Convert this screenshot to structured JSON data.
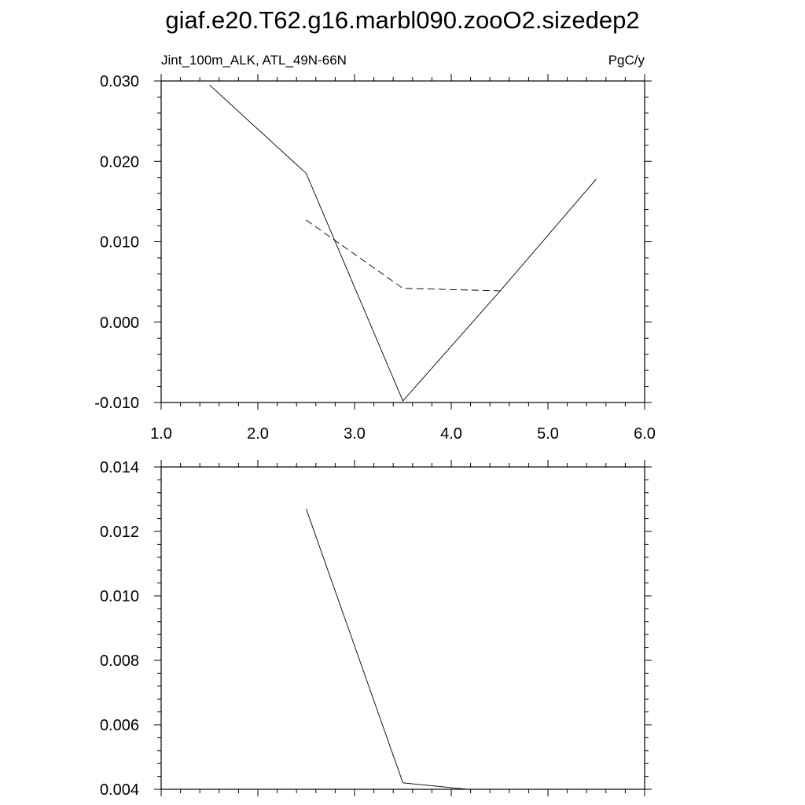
{
  "figure": {
    "title": "giaf.e20.T62.g16.marbl090.zooO2.sizedep2"
  },
  "chart_data": [
    {
      "type": "line",
      "subtitle_left": "Jint_100m_ALK, ATL_49N-66N",
      "subtitle_right": "PgC/y",
      "xlim": [
        1.0,
        6.0
      ],
      "ylim": [
        -0.01,
        0.03
      ],
      "x_ticks": [
        1.0,
        2.0,
        3.0,
        4.0,
        5.0,
        6.0
      ],
      "x_tick_labels": [
        "1.0",
        "2.0",
        "3.0",
        "4.0",
        "5.0",
        "6.0"
      ],
      "y_ticks": [
        -0.01,
        0.0,
        0.01,
        0.02,
        0.03
      ],
      "y_tick_labels": [
        "-0.010",
        "0.000",
        "0.010",
        "0.020",
        "0.030"
      ],
      "grid": false,
      "series": [
        {
          "style": "solid",
          "x": [
            1.5,
            2.5,
            3.5,
            4.5,
            5.5
          ],
          "y": [
            0.0295,
            0.0185,
            -0.0098,
            0.0038,
            0.0178
          ]
        },
        {
          "style": "dashed",
          "x": [
            2.5,
            3.5,
            4.5
          ],
          "y": [
            0.0127,
            0.0042,
            0.0039
          ]
        }
      ]
    },
    {
      "type": "line",
      "xlim": [
        1.0,
        6.0
      ],
      "ylim": [
        0.004,
        0.014
      ],
      "x_ticks": [
        1.0,
        2.0,
        3.0,
        4.0,
        5.0,
        6.0
      ],
      "y_ticks": [
        0.004,
        0.006,
        0.008,
        0.01,
        0.012,
        0.014
      ],
      "y_tick_labels": [
        "0.004",
        "0.006",
        "0.008",
        "0.010",
        "0.012",
        "0.014"
      ],
      "grid": false,
      "series": [
        {
          "style": "solid",
          "x": [
            2.5,
            3.5,
            4.5
          ],
          "y": [
            0.0127,
            0.0042,
            0.0039
          ]
        }
      ]
    }
  ]
}
